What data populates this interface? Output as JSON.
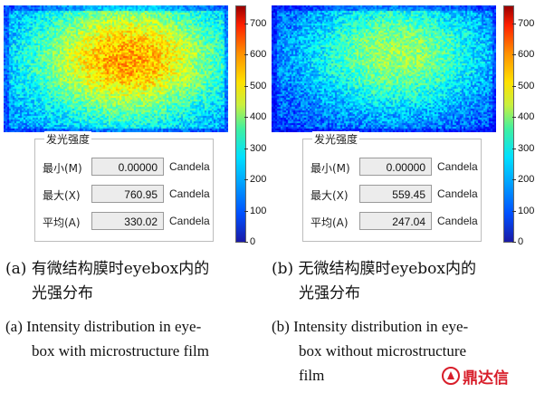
{
  "chart_data": [
    {
      "type": "heatmap",
      "panel": "a",
      "colorbar_ticks": [
        0,
        100,
        200,
        300,
        400,
        500,
        600,
        700
      ],
      "colorbar_range": [
        0,
        760
      ],
      "peak_position": "center",
      "luminance_box": {
        "title": "发光强度",
        "rows": [
          {
            "label": "最小(M)",
            "value": "0.00000",
            "unit": "Candela"
          },
          {
            "label": "最大(X)",
            "value": "760.95",
            "unit": "Candela"
          },
          {
            "label": "平均(A)",
            "value": "330.02",
            "unit": "Candela"
          }
        ]
      },
      "caption_cn": [
        "(a) 有微结构膜时eyebox内的",
        "光强分布"
      ],
      "caption_en": [
        "(a) Intensity distribution in eye-",
        "box with microstructure film"
      ]
    },
    {
      "type": "heatmap",
      "panel": "b",
      "colorbar_ticks": [
        0,
        100,
        200,
        300,
        400,
        500,
        600,
        700
      ],
      "colorbar_range": [
        0,
        760
      ],
      "peak_position": "upper-center",
      "luminance_box": {
        "title": "发光强度",
        "rows": [
          {
            "label": "最小(M)",
            "value": "0.00000",
            "unit": "Candela"
          },
          {
            "label": "最大(X)",
            "value": "559.45",
            "unit": "Candela"
          },
          {
            "label": "平均(A)",
            "value": "247.04",
            "unit": "Candela"
          }
        ]
      },
      "caption_cn": [
        "(b) 无微结构膜时eyebox内的",
        "光强分布"
      ],
      "caption_en": [
        "(b) Intensity distribution in eye-",
        "box without microstructure",
        "film"
      ]
    }
  ],
  "logo": {
    "text": "鼎达信",
    "color": "#d81e2a"
  }
}
